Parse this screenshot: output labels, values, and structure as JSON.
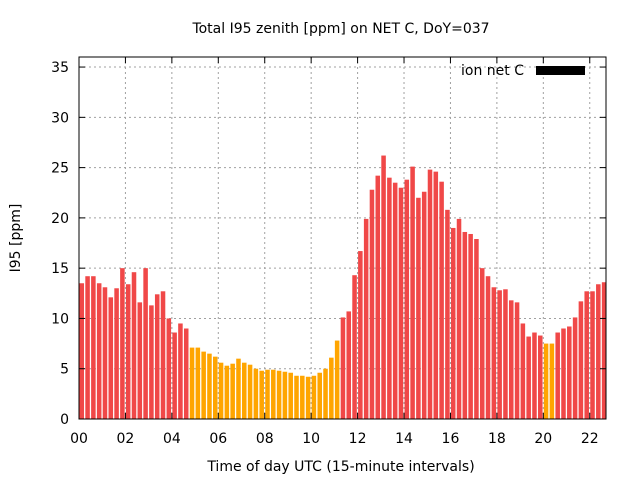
{
  "chart_data": {
    "type": "bar",
    "title": "Total I95 zenith [ppm] on NET C, DoY=037",
    "xlabel": "Time of day UTC (15-minute intervals)",
    "ylabel": "I95 [ppm]",
    "xlim": [
      0,
      22.7
    ],
    "ylim": [
      0,
      36
    ],
    "x_ticks": [
      "00",
      "02",
      "04",
      "06",
      "08",
      "10",
      "12",
      "14",
      "16",
      "18",
      "20",
      "22"
    ],
    "y_ticks": [
      "0",
      "5",
      "10",
      "15",
      "20",
      "25",
      "30",
      "35"
    ],
    "grid": true,
    "legend": {
      "label": "ion net C",
      "color": "#000000",
      "placement": "top-right"
    },
    "colors": {
      "high": "#f04848",
      "low": "#ffa500"
    },
    "low_threshold": 8,
    "x_start_hour": 0,
    "x_step_hours": 0.25,
    "values": [
      13.5,
      14.2,
      14.2,
      13.5,
      13.1,
      12.1,
      13.0,
      15.0,
      13.4,
      14.6,
      11.6,
      15.0,
      11.3,
      12.4,
      12.7,
      10.0,
      8.6,
      9.5,
      9.0,
      7.1,
      7.1,
      6.7,
      6.5,
      6.2,
      5.6,
      5.3,
      5.5,
      6.0,
      5.6,
      5.4,
      5.0,
      4.8,
      4.9,
      4.9,
      4.8,
      4.7,
      4.6,
      4.3,
      4.3,
      4.2,
      4.3,
      4.6,
      5.0,
      6.1,
      7.8,
      10.1,
      10.7,
      14.3,
      16.7,
      19.9,
      22.8,
      24.2,
      26.2,
      24.0,
      23.5,
      23.0,
      23.8,
      25.1,
      22.0,
      22.6,
      24.8,
      24.6,
      23.6,
      20.8,
      19.0,
      19.9,
      18.6,
      18.4,
      17.9,
      15.0,
      14.2,
      13.1,
      12.8,
      12.9,
      11.8,
      11.6,
      9.5,
      8.2,
      8.6,
      8.3,
      7.5,
      7.5,
      8.6,
      9.0,
      9.2,
      10.1,
      11.7,
      12.7,
      12.7,
      13.4,
      13.6
    ]
  }
}
